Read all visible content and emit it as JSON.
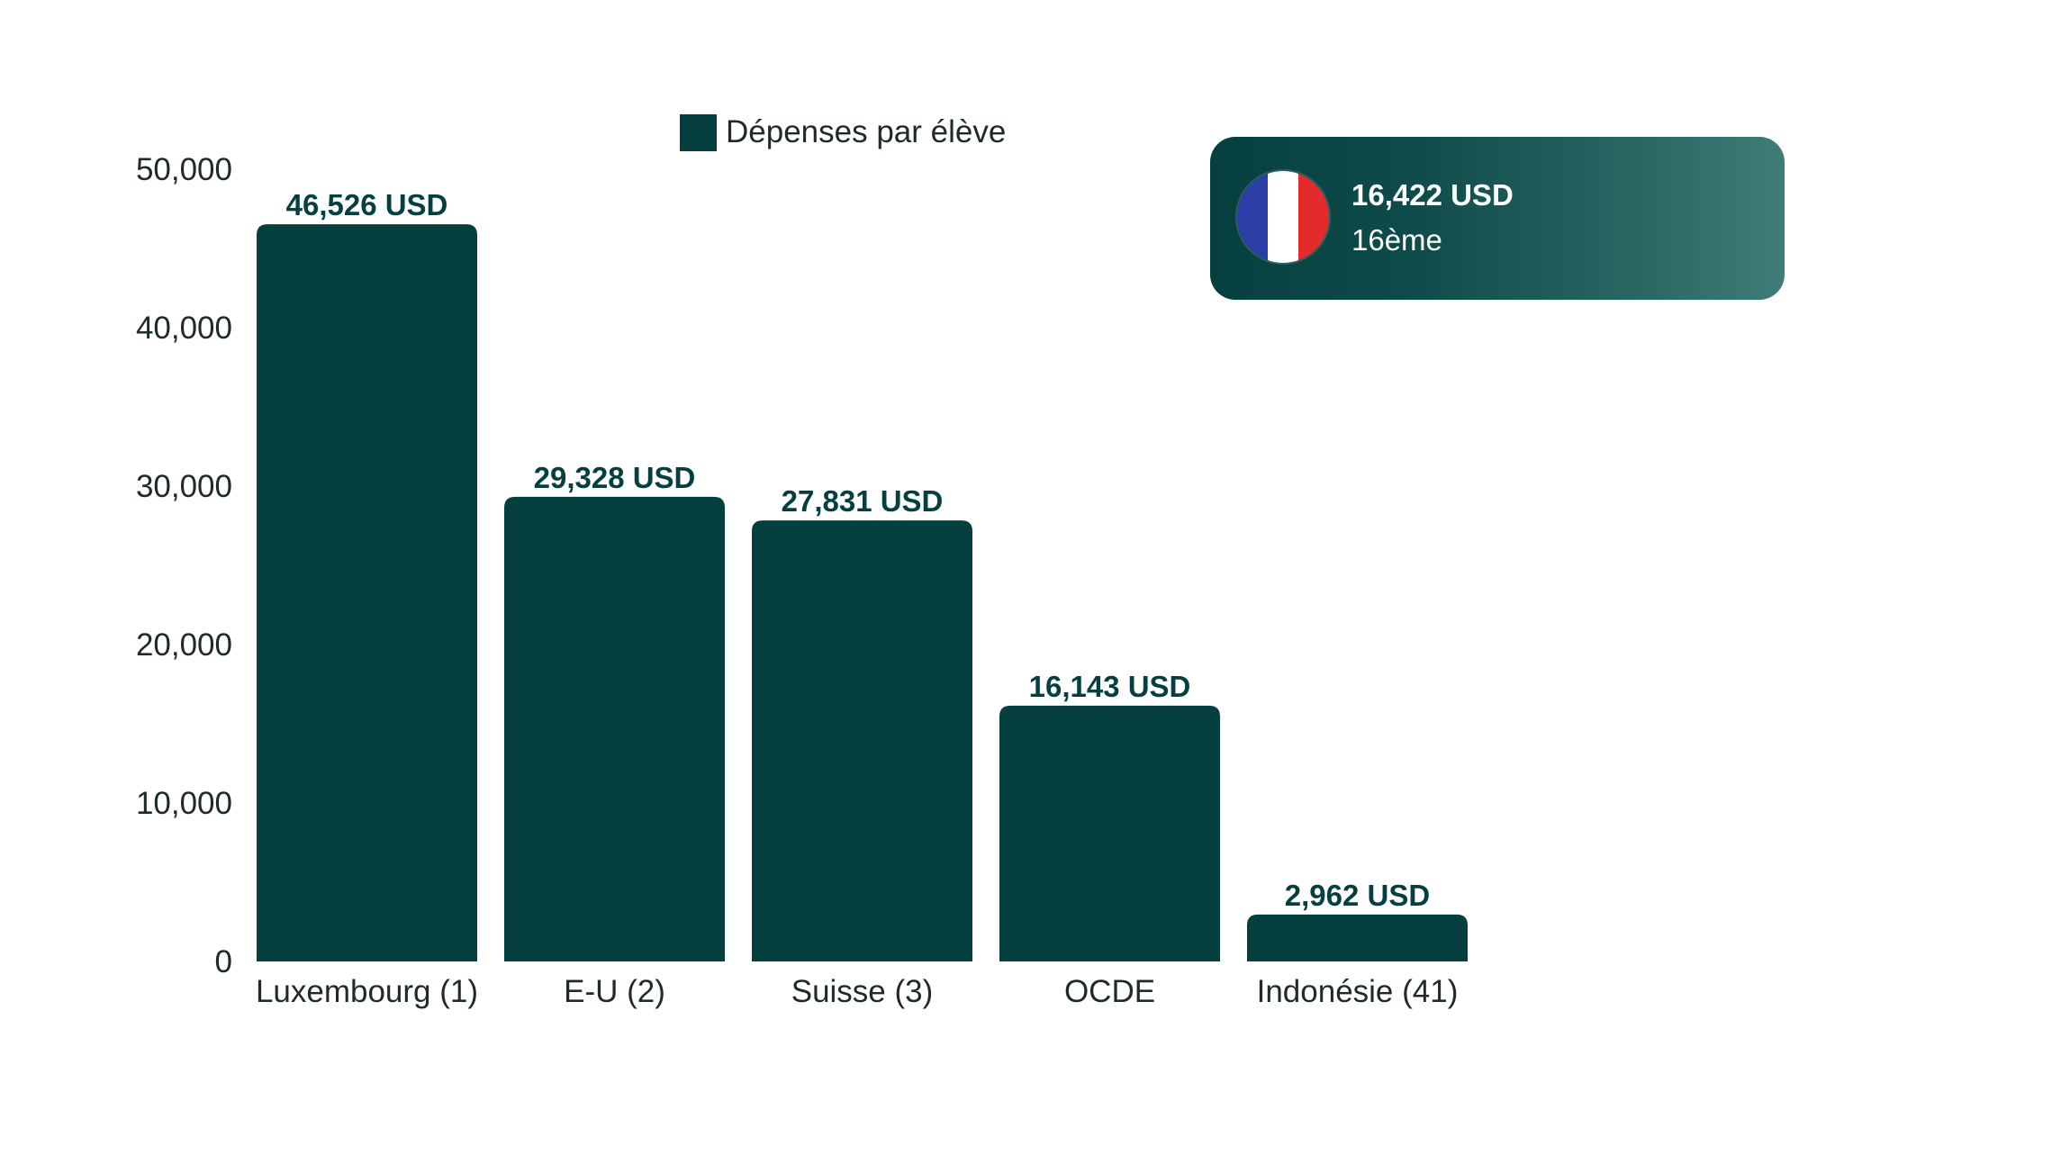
{
  "chart_data": {
    "type": "bar",
    "categories": [
      "Luxembourg (1)",
      "E-U (2)",
      "Suisse (3)",
      "OCDE",
      "Indonésie (41)"
    ],
    "series": [
      {
        "name": "Dépenses par élève",
        "values": [
          46526,
          29328,
          27831,
          16143,
          2962
        ],
        "data_labels": [
          "46,526 USD",
          "29,328 USD",
          "27,831 USD",
          "16,143 USD",
          "2,962 USD"
        ]
      }
    ],
    "y_ticks": [
      "0",
      "10,000",
      "20,000",
      "30,000",
      "40,000",
      "50,000"
    ],
    "ylim": [
      0,
      50000
    ],
    "grid": false,
    "legend_position": "top-center",
    "bar_color": "#063f40"
  },
  "callout": {
    "value": "16,422 USD",
    "rank": "16ème",
    "flag_icon": "france-flag-icon",
    "flag_colors": [
      "#2c3fa8",
      "#ffffff",
      "#e42b2b"
    ],
    "background_color": "#063f40"
  }
}
